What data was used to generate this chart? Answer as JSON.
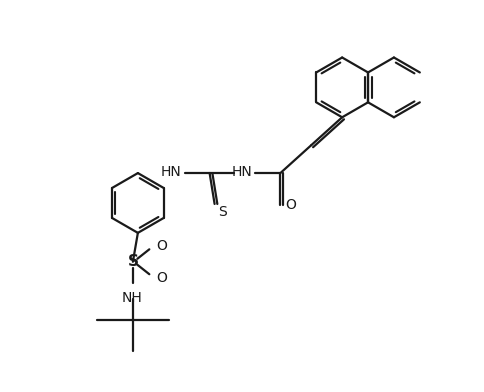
{
  "background_color": "#ffffff",
  "line_color": "#1a1a1a",
  "line_width": 1.6,
  "figsize": [
    4.85,
    3.92
  ],
  "dpi": 100,
  "xlim": [
    0,
    9.7
  ],
  "ylim": [
    0,
    7.84
  ]
}
